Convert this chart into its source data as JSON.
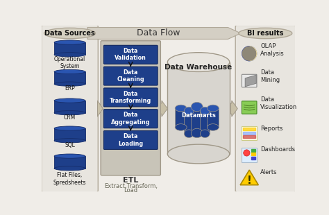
{
  "bg_color": "#f0ede8",
  "left_panel": {
    "label": "Data Sources",
    "sources": [
      "Operational\nSystem",
      "ERP",
      "CRM",
      "SQL",
      "Flat Files,\nSpredsheets"
    ],
    "cyl_color": "#1e3f8a",
    "cyl_top_color": "#2a55b0",
    "cyl_edge": "#162d6a"
  },
  "etl_panel": {
    "bg": "#c8c4b8",
    "border": "#a09888",
    "steps": [
      "Data\nValidation",
      "Data\nCleaning",
      "Data\nTransforming",
      "Data\nAggregating",
      "Data\nLoading"
    ],
    "step_color": "#1e3f8a",
    "label": "ETL",
    "sublabel": "Extract,Transform,\nLoad"
  },
  "warehouse": {
    "label": "Data Warehouse",
    "sub_label": "Datamarts",
    "body_color": "#d8d5cf",
    "top_color": "#e8e5df",
    "cyl_color": "#1e3f8a",
    "cyl_top": "#2a55b0",
    "border": "#a09888"
  },
  "right_panel": {
    "label": "BI results",
    "items": [
      "OLAP\nAnalysis",
      "Data\nMining",
      "Data\nVisualization",
      "Reports",
      "Dashboards",
      "Alerts"
    ]
  },
  "panel_bg": "#e8e5df",
  "panel_border": "#b0a898",
  "etl_bg": "#c8c4b8",
  "arrow_big_color": "#d4cfc4",
  "arrow_big_border": "#b0a898",
  "small_arrow_color": "#c8c0a8",
  "small_arrow_border": "#a09888"
}
